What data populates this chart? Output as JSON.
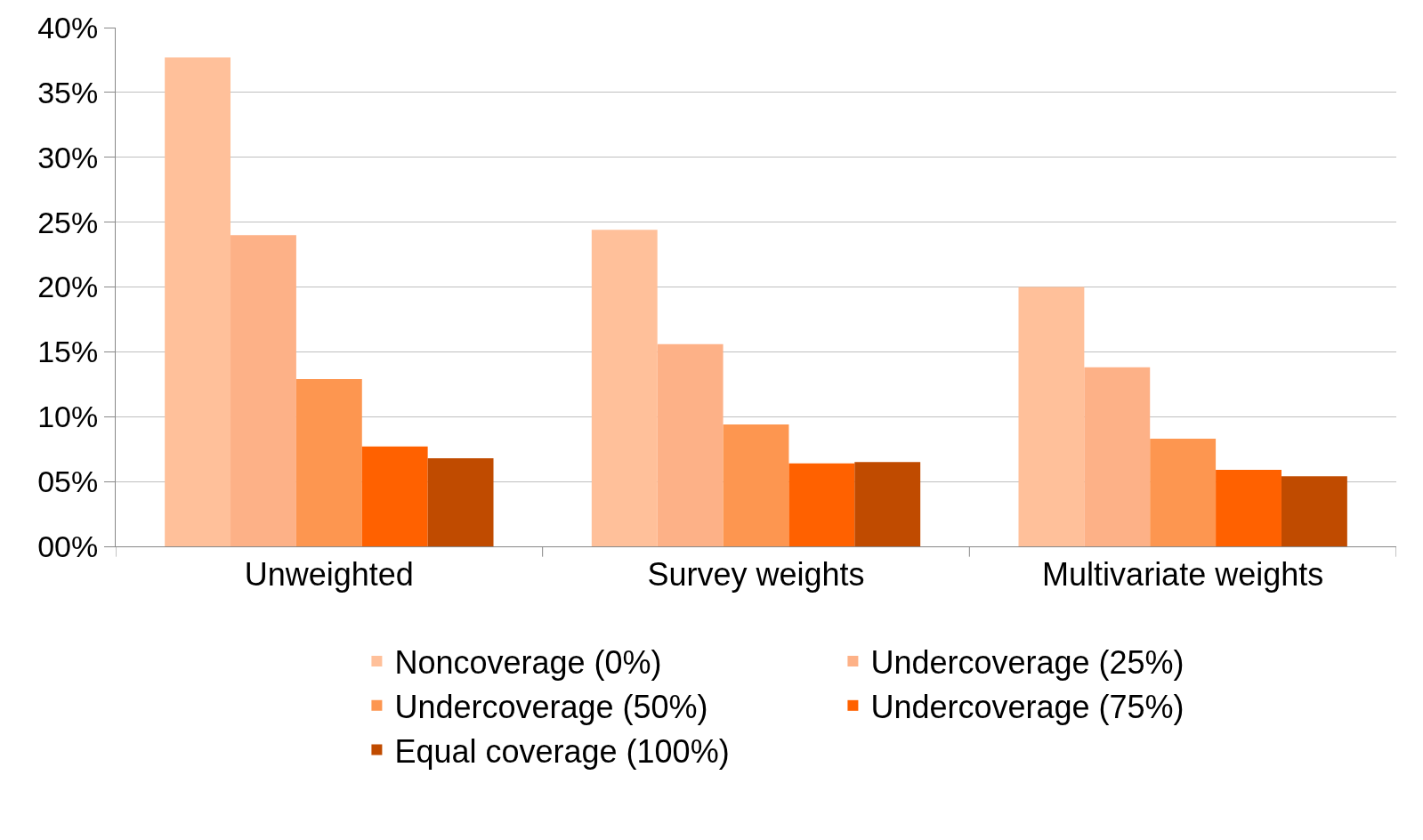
{
  "chart_data": {
    "type": "bar",
    "categories": [
      "Unweighted",
      "Survey weights",
      "Multivariate weights"
    ],
    "series": [
      {
        "name": "Noncoverage (0%)",
        "color": "#ffc09a",
        "values": [
          37.7,
          24.4,
          20.0
        ]
      },
      {
        "name": "Undercoverage (25%)",
        "color": "#fdb187",
        "values": [
          24.0,
          15.6,
          13.8
        ]
      },
      {
        "name": "Undercoverage (50%)",
        "color": "#fd9650",
        "values": [
          12.9,
          9.4,
          8.3
        ]
      },
      {
        "name": "Undercoverage (75%)",
        "color": "#ff6100",
        "values": [
          7.7,
          6.4,
          5.9
        ]
      },
      {
        "name": "Equal coverage (100%)",
        "color": "#c04b00",
        "values": [
          6.8,
          6.5,
          5.4
        ]
      }
    ],
    "ylim": [
      0,
      40
    ],
    "yticks": [
      {
        "value": 0,
        "label": "00%"
      },
      {
        "value": 5,
        "label": "05%"
      },
      {
        "value": 10,
        "label": "10%"
      },
      {
        "value": 15,
        "label": "15%"
      },
      {
        "value": 20,
        "label": "20%"
      },
      {
        "value": 25,
        "label": "25%"
      },
      {
        "value": 30,
        "label": "30%"
      },
      {
        "value": 35,
        "label": "35%"
      },
      {
        "value": 40,
        "label": "40%"
      }
    ],
    "grid": "y",
    "legend": "bottom"
  }
}
